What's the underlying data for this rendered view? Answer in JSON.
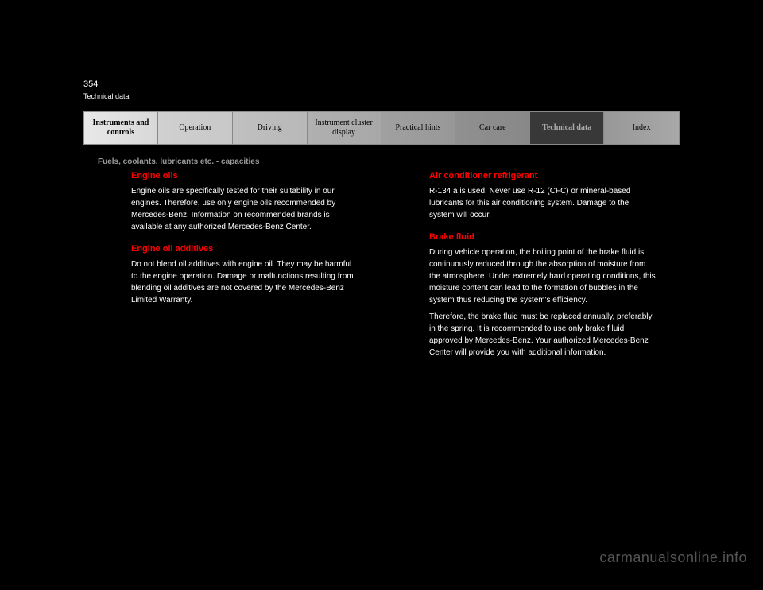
{
  "page_number": "354",
  "page_subtitle": "Technical data",
  "tabs": [
    "Instruments and controls",
    "Operation",
    "Driving",
    "Instrument cluster display",
    "Practical hints",
    "Car care",
    "Technical data",
    "Index"
  ],
  "section_title": "Fuels, coolants, lubricants etc. - capacities",
  "col1": {
    "h1": "Engine oils",
    "p1": "Engine oils are specifically tested for their suitability in our engines. Therefore, use only engine oils recommended by Mercedes-Benz. Information on recommended brands is available at any authorized Mercedes-Benz Center.",
    "h2": "Engine oil additives",
    "p2": "Do not blend oil additives with engine oil. They may be harmful to the engine operation. Damage or malfunctions resulting from blending oil additives are not covered by the Mercedes-Benz Limited Warranty."
  },
  "col2": {
    "h1": "Air conditioner refrigerant",
    "p1": "R-134 a is used. Never use R-12 (CFC) or mineral-based lubricants for this air conditioning system. Damage to the system will occur.",
    "h2": "Brake fluid",
    "p2": "During vehicle operation, the boiling point of the brake fluid is continuously reduced through the absorption of moisture from the atmosphere. Under extremely hard operating conditions, this moisture content can lead to the formation of bubbles in the system thus reducing the system's efficiency.",
    "p3": "Therefore, the brake fluid must be replaced annually, preferably in the spring. It is recommended to use only brake f luid approved by Mercedes-Benz. Your authorized Mercedes-Benz Center will provide you with additional information."
  },
  "watermark": "carmanualsonline.info",
  "colors": {
    "background": "#000000",
    "heading": "#ff0000",
    "text": "#ffffff",
    "muted": "#999999",
    "watermark": "#555555",
    "active_tab_bg": "#383838",
    "active_tab_text": "#aaaaaa"
  },
  "typography": {
    "body_fontsize": 10,
    "heading_fontsize": 11,
    "tab_fontsize": 10,
    "watermark_fontsize": 18
  }
}
